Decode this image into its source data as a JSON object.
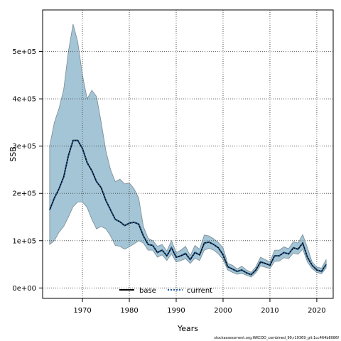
{
  "chart_data": {
    "type": "line",
    "xlabel": "Years",
    "ylabel": "SSB",
    "xlim": [
      1961.5,
      2023.5
    ],
    "ylim": [
      -22000,
      588000
    ],
    "x_ticks": [
      1970,
      1980,
      1990,
      2000,
      2010,
      2020
    ],
    "x_tick_labels": [
      "1970",
      "1980",
      "1990",
      "2000",
      "2010",
      "2020"
    ],
    "y_ticks": [
      0,
      100000,
      200000,
      300000,
      400000,
      500000
    ],
    "y_tick_labels": [
      "0e+00",
      "1e+05",
      "2e+05",
      "3e+05",
      "4e+05",
      "5e+05"
    ],
    "grid": true,
    "legend_position": "bottom",
    "x": [
      1963,
      1964,
      1965,
      1966,
      1967,
      1968,
      1969,
      1970,
      1971,
      1972,
      1973,
      1974,
      1975,
      1976,
      1977,
      1978,
      1979,
      1980,
      1981,
      1982,
      1983,
      1984,
      1985,
      1986,
      1987,
      1988,
      1989,
      1990,
      1991,
      1992,
      1993,
      1994,
      1995,
      1996,
      1997,
      1998,
      1999,
      2000,
      2001,
      2002,
      2003,
      2004,
      2005,
      2006,
      2007,
      2008,
      2009,
      2010,
      2011,
      2012,
      2013,
      2014,
      2015,
      2016,
      2017,
      2018,
      2019,
      2020,
      2021,
      2022
    ],
    "series": [
      {
        "name": "base",
        "color": "#000000",
        "style": "solid",
        "values": [
          165000,
          190000,
          210000,
          235000,
          280000,
          312000,
          312000,
          295000,
          265000,
          248000,
          225000,
          212000,
          185000,
          165000,
          145000,
          140000,
          132000,
          137000,
          139000,
          135000,
          110000,
          92000,
          90000,
          75000,
          80000,
          68000,
          85000,
          65000,
          68000,
          73000,
          60000,
          75000,
          70000,
          95000,
          97000,
          92000,
          85000,
          70000,
          45000,
          40000,
          35000,
          38000,
          32000,
          28000,
          38000,
          55000,
          52000,
          48000,
          68000,
          68000,
          75000,
          72000,
          85000,
          82000,
          95000,
          65000,
          48000,
          38000,
          35000,
          50000
        ]
      },
      {
        "name": "current",
        "color": "#1f5a96",
        "style": "dotted",
        "values": [
          165000,
          190000,
          210000,
          235000,
          280000,
          312000,
          312000,
          295000,
          265000,
          248000,
          225000,
          212000,
          185000,
          165000,
          145000,
          140000,
          132000,
          137000,
          139000,
          135000,
          110000,
          92000,
          90000,
          75000,
          80000,
          68000,
          85000,
          65000,
          68000,
          73000,
          60000,
          75000,
          70000,
          95000,
          97000,
          92000,
          85000,
          70000,
          45000,
          40000,
          35000,
          38000,
          32000,
          28000,
          38000,
          55000,
          52000,
          48000,
          68000,
          68000,
          75000,
          72000,
          85000,
          82000,
          95000,
          65000,
          48000,
          38000,
          35000,
          50000
        ]
      }
    ],
    "confidence_band": {
      "color": "#a3c5d6",
      "upper": [
        300000,
        350000,
        380000,
        420000,
        500000,
        558000,
        520000,
        450000,
        400000,
        418000,
        405000,
        350000,
        290000,
        250000,
        225000,
        230000,
        220000,
        222000,
        210000,
        190000,
        130000,
        105000,
        100000,
        88000,
        92000,
        78000,
        100000,
        75000,
        80000,
        88000,
        68000,
        90000,
        82000,
        112000,
        110000,
        104000,
        96000,
        85000,
        52000,
        48000,
        40000,
        46000,
        38000,
        33000,
        45000,
        65000,
        60000,
        55000,
        80000,
        80000,
        87000,
        83000,
        98000,
        95000,
        113000,
        85000,
        55000,
        44000,
        42000,
        60000
      ],
      "lower": [
        92000,
        100000,
        118000,
        130000,
        150000,
        172000,
        182000,
        182000,
        170000,
        145000,
        125000,
        130000,
        125000,
        110000,
        90000,
        88000,
        82000,
        87000,
        93000,
        100000,
        95000,
        80000,
        80000,
        65000,
        70000,
        58000,
        72000,
        55000,
        58000,
        62000,
        52000,
        63000,
        58000,
        80000,
        84000,
        80000,
        72000,
        60000,
        38000,
        33000,
        29000,
        31000,
        27000,
        23000,
        32000,
        47000,
        44000,
        41000,
        56000,
        57000,
        64000,
        62000,
        74000,
        71000,
        82000,
        55000,
        41000,
        33000,
        30000,
        42000
      ]
    },
    "footer": "stockassessment.org,WKCOD_combined_99,r19369_git:1cc464b8086f"
  }
}
